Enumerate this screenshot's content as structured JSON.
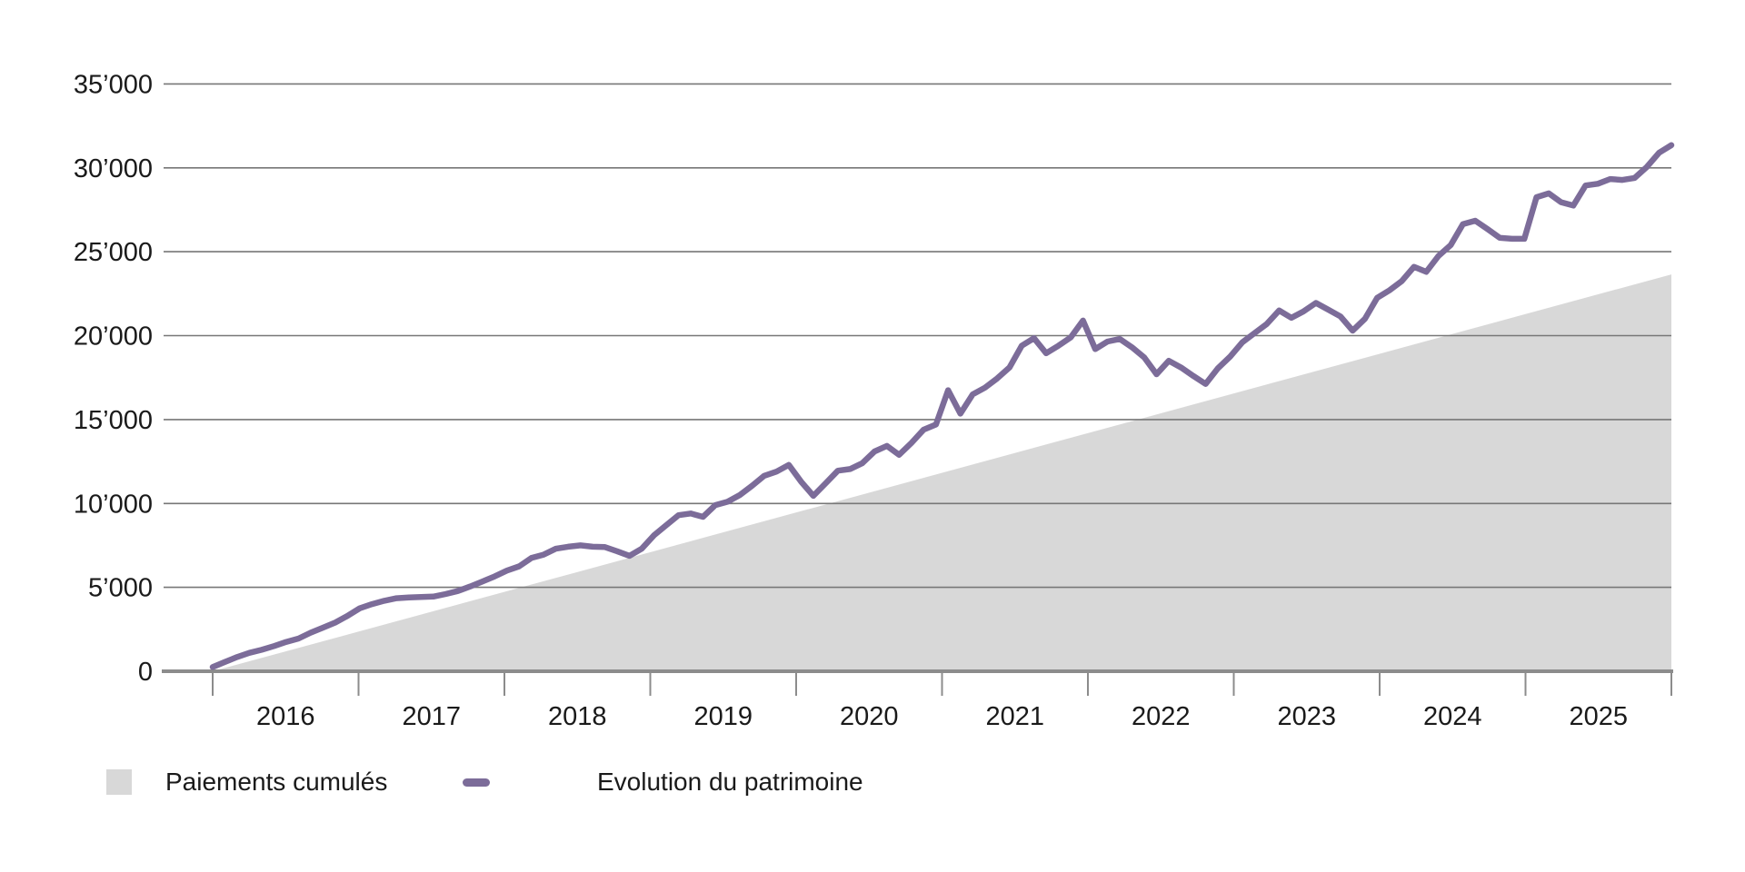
{
  "chart_data": {
    "type": "area+line",
    "title": "",
    "xlabel": "",
    "ylabel": "",
    "x_unit": "month",
    "x_range": [
      "2016-01",
      "2025-12"
    ],
    "points_count": 120,
    "ylim": [
      0,
      35000
    ],
    "grid": true,
    "legend_position": "bottom-left",
    "x_tick_labels": [
      "2016",
      "2017",
      "2018",
      "2019",
      "2020",
      "2021",
      "2022",
      "2023",
      "2024",
      "2025"
    ],
    "y_ticks": [
      {
        "label": "35’000",
        "value": 35000
      },
      {
        "label": "30’000",
        "value": 30000
      },
      {
        "label": "25’000",
        "value": 25000
      },
      {
        "label": "20’000",
        "value": 20000
      },
      {
        "label": "15’000",
        "value": 15000
      },
      {
        "label": "10’000",
        "value": 10000
      },
      {
        "label": "5’000",
        "value": 5000
      },
      {
        "label": "0",
        "value": 0
      }
    ],
    "series": [
      {
        "name": "Paiements cumulés",
        "type": "area",
        "color": "#d8d8d8",
        "shape": "linear",
        "start_value": 0,
        "end_value": 23650
      },
      {
        "name": "Evolution du patrimoine",
        "type": "line",
        "color": "#7c6c99",
        "line_width": 6.5,
        "values": [
          250,
          550,
          850,
          1100,
          1280,
          1500,
          1750,
          1950,
          2300,
          2600,
          2900,
          3300,
          3750,
          4000,
          4200,
          4350,
          4400,
          4420,
          4450,
          4600,
          4780,
          5050,
          5350,
          5650,
          6000,
          6250,
          6750,
          6950,
          7300,
          7420,
          7500,
          7420,
          7400,
          7150,
          6880,
          7300,
          8100,
          8700,
          9300,
          9400,
          9200,
          9900,
          10100,
          10500,
          11050,
          11650,
          11900,
          12300,
          11300,
          10450,
          11200,
          11950,
          12050,
          12400,
          13100,
          13430,
          12900,
          13600,
          14400,
          14700,
          16750,
          15350,
          16500,
          16900,
          17450,
          18100,
          19400,
          19850,
          18950,
          19400,
          19900,
          20900,
          19200,
          19650,
          19800,
          19300,
          18700,
          17700,
          18500,
          18100,
          17600,
          17120,
          18050,
          18750,
          19600,
          20150,
          20700,
          21500,
          21060,
          21450,
          21950,
          21550,
          21150,
          20300,
          21000,
          22250,
          22700,
          23250,
          24100,
          23800,
          24750,
          25400,
          26650,
          26850,
          26350,
          25830,
          25770,
          25770,
          28250,
          28480,
          27950,
          27750,
          28950,
          29050,
          29330,
          29280,
          29400,
          30050,
          30900,
          31350
        ]
      }
    ]
  },
  "legend": {
    "items": [
      {
        "swatch": "square",
        "label": "Paiements cumulés"
      },
      {
        "swatch": "dash",
        "label": "Evolution du patrimoine"
      }
    ]
  },
  "colors": {
    "background": "#ffffff",
    "gridline": "#777777",
    "axis": "#8c8c8c",
    "tick": "#8c8c8c",
    "text": "#1a1a1a",
    "area": "#d8d8d8",
    "line": "#7c6c99"
  }
}
